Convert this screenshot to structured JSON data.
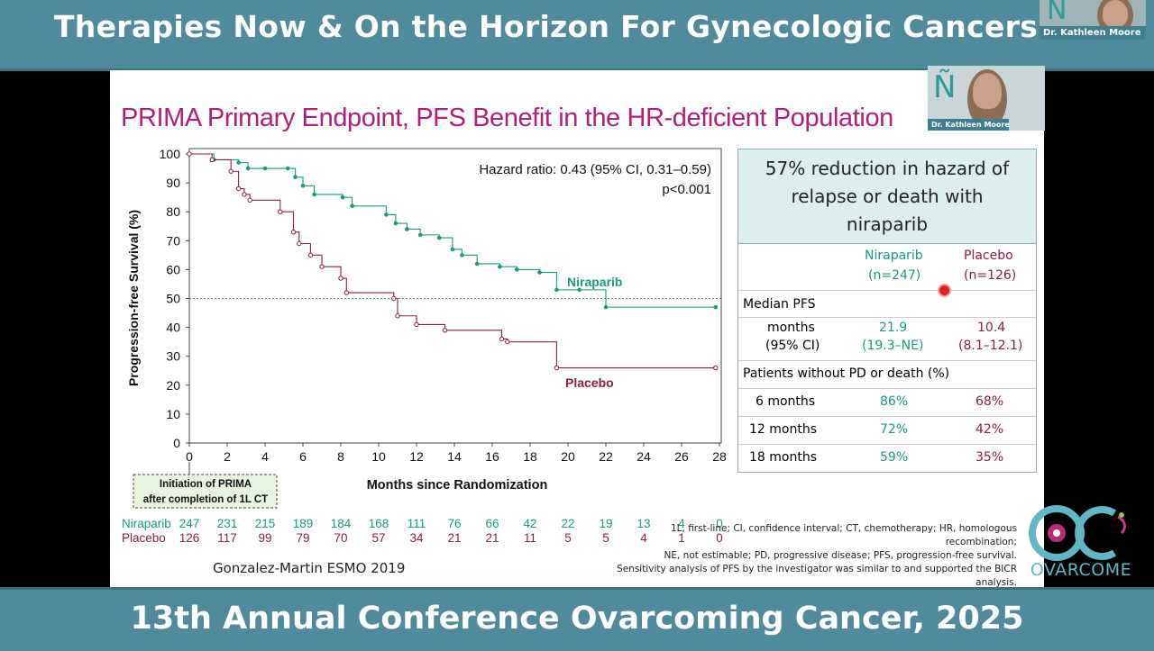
{
  "top_banner": "Therapies Now & On the Horizon For Gynecologic Cancers",
  "bottom_banner": "13th Annual Conference Ovarcoming Cancer, 2025",
  "speaker_name": "Dr. Kathleen Moore",
  "slide_title": "PRIMA Primary Endpoint, PFS Benefit in the HR-deficient Population",
  "logo_text": "OVARCOME",
  "logo_colors": {
    "teal": "#5fb7c7",
    "pink": "#d8348a",
    "green": "#8bc34a"
  },
  "chart_data": {
    "type": "line",
    "xlabel": "Months since Randomization",
    "ylabel": "Progression-free Survival (%)",
    "xlim": [
      0,
      28
    ],
    "ylim": [
      0,
      100
    ],
    "xticks": [
      0,
      2,
      4,
      6,
      8,
      10,
      12,
      14,
      16,
      18,
      20,
      22,
      24,
      26,
      28
    ],
    "yticks": [
      0,
      10,
      20,
      30,
      40,
      50,
      60,
      70,
      80,
      90,
      100
    ],
    "reference_line_y": 50,
    "annotation": "Hazard ratio: 0.43 (95% CI, 0.31–0.59)",
    "annotation2": "p<0.001",
    "baseline_note": "Initiation of PRIMA after completion of 1L CT",
    "series": [
      {
        "name": "Niraparib",
        "color": "#1a9a80",
        "x": [
          0,
          1.3,
          2.6,
          3.1,
          4.0,
          5.2,
          5.6,
          6.0,
          6.6,
          8.1,
          8.6,
          10.4,
          10.9,
          11.5,
          12.2,
          13.2,
          13.9,
          14.4,
          15.2,
          16.4,
          17.3,
          18.5,
          19.4,
          20.6,
          22.0,
          27.8
        ],
        "y": [
          100,
          98,
          97,
          95,
          95,
          95,
          92,
          89,
          86,
          85,
          82,
          79,
          76,
          74,
          72,
          71,
          67,
          65,
          62,
          61,
          60,
          59,
          53,
          53,
          47,
          47
        ]
      },
      {
        "name": "Placebo",
        "color": "#8b1d4a",
        "x": [
          0,
          1.2,
          2.2,
          2.6,
          2.9,
          3.2,
          4.8,
          5.5,
          5.8,
          6.4,
          7.0,
          8.0,
          8.3,
          10.8,
          11.0,
          12.0,
          13.5,
          16.5,
          16.8,
          19.4,
          27.8
        ],
        "y": [
          100,
          98,
          94,
          88,
          86,
          84,
          80,
          73,
          69,
          65,
          61,
          57,
          52,
          50,
          44,
          41,
          39,
          36,
          35,
          26,
          26
        ]
      }
    ]
  },
  "series_labels": {
    "niraparib": "Niraparib",
    "placebo": "Placebo"
  },
  "at_risk": {
    "niraparib": {
      "label": "Niraparib",
      "values": [
        "247",
        "231",
        "215",
        "189",
        "184",
        "168",
        "111",
        "76",
        "66",
        "42",
        "22",
        "19",
        "13",
        "4",
        "0"
      ]
    },
    "placebo": {
      "label": "Placebo",
      "values": [
        "126",
        "117",
        "99",
        "79",
        "70",
        "57",
        "34",
        "21",
        "21",
        "11",
        "5",
        "5",
        "4",
        "1",
        "0"
      ]
    }
  },
  "stats_table": {
    "header": [
      "57% reduction in hazard of",
      "relapse or death with",
      "niraparib"
    ],
    "col1": {
      "name": "Niraparib",
      "n": "(n=247)"
    },
    "col2": {
      "name": "Placebo",
      "n": "(n=126)"
    },
    "median_label": "Median PFS",
    "months_label": "months",
    "ci_label": "(95% CI)",
    "median_nira": "21.9",
    "median_nira_ci": "(19.3–NE)",
    "median_plac": "10.4",
    "median_plac_ci": "(8.1–12.1)",
    "pd_label": "Patients without PD or death (%)",
    "rows": [
      {
        "label": "6 months",
        "nira": "86%",
        "plac": "68%"
      },
      {
        "label": "12 months",
        "nira": "72%",
        "plac": "42%"
      },
      {
        "label": "18 months",
        "nira": "59%",
        "plac": "35%"
      }
    ]
  },
  "footnote": [
    "1L, first-line; CI, confidence interval; CT, chemotherapy; HR, homologous",
    "recombination;",
    "NE, not estimable; PD, progressive disease; PFS, progression-free survival.",
    "Sensitivity analysis of PFS by the investigator was similar to and supported the BICR",
    "analysis."
  ],
  "source": "Gonzalez-Martin ESMO 2019"
}
